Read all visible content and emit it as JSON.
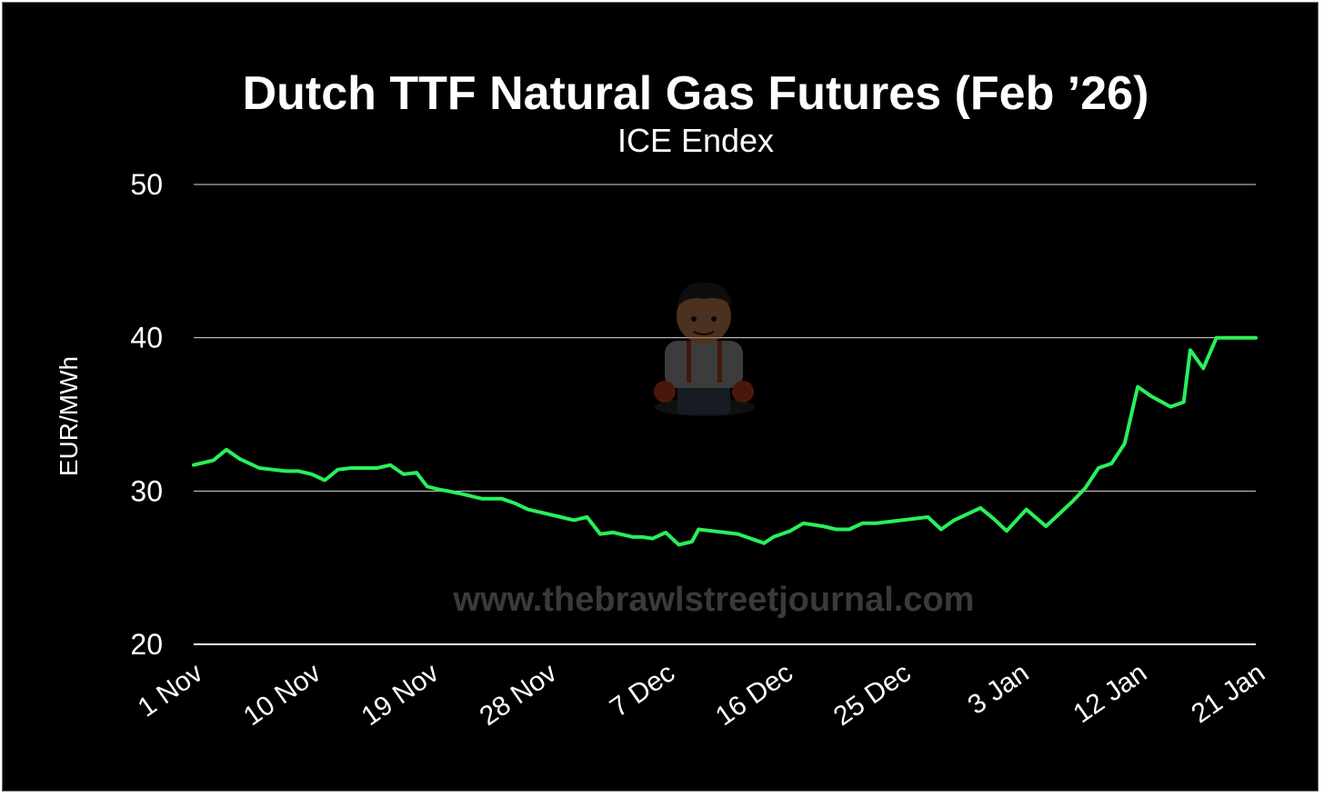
{
  "watermark_text": "www.thebrawlstreetjournal.com",
  "mascot_icon": "cartoon-brawler-mascot-icon",
  "colors": {
    "background": "#000000",
    "line": "#29f05a",
    "grid": "#ffffff",
    "text": "#ffffff",
    "watermark": "#3a3a3a"
  },
  "chart_data": {
    "type": "line",
    "title": "Dutch TTF Natural Gas Futures (Feb ’26)",
    "subtitle": "ICE Endex",
    "xlabel": "",
    "ylabel": "EUR/MWh",
    "ylim": [
      20,
      50
    ],
    "yticks": [
      "20",
      "30",
      "40",
      "50"
    ],
    "xticks": [
      {
        "label": "1 Nov",
        "x": 0
      },
      {
        "label": "10 Nov",
        "x": 9
      },
      {
        "label": "19 Nov",
        "x": 18
      },
      {
        "label": "28 Nov",
        "x": 27
      },
      {
        "label": "7 Dec",
        "x": 36
      },
      {
        "label": "16 Dec",
        "x": 45
      },
      {
        "label": "25 Dec",
        "x": 54
      },
      {
        "label": "3 Jan",
        "x": 63
      },
      {
        "label": "12 Jan",
        "x": 72
      },
      {
        "label": "21 Jan",
        "x": 81
      }
    ],
    "grid": true,
    "series": [
      {
        "x": [
          0,
          1.5,
          2.5,
          3.5,
          5,
          6,
          7,
          8,
          9,
          10,
          11,
          12,
          13,
          14,
          15,
          16,
          17,
          17.8,
          18.7,
          19.4,
          20.5,
          22,
          23.5,
          24.5,
          25.5,
          27,
          28,
          29,
          30,
          31,
          32,
          33.5,
          34.2,
          35,
          36,
          37,
          38,
          38.5,
          39.5,
          40.5,
          41.5,
          43.5,
          44.2,
          45.5,
          46.5,
          48,
          49,
          50,
          51,
          52,
          53,
          54,
          56,
          57,
          58,
          60,
          61,
          62,
          63.5,
          65,
          66,
          67,
          68,
          69,
          70,
          71,
          72,
          73,
          74.5,
          75.5,
          76,
          77,
          78,
          79,
          79.5,
          80.5,
          81
        ],
        "y": [
          31.7,
          32.0,
          32.7,
          32.1,
          31.5,
          31.4,
          31.3,
          31.3,
          31.1,
          30.7,
          31.4,
          31.5,
          31.5,
          31.5,
          31.7,
          31.1,
          31.2,
          30.3,
          30.1,
          30.0,
          29.8,
          29.5,
          29.5,
          29.2,
          28.8,
          28.5,
          28.3,
          28.1,
          28.3,
          27.2,
          27.3,
          27.0,
          27.0,
          26.9,
          27.3,
          26.5,
          26.7,
          27.5,
          27.4,
          27.3,
          27.2,
          26.6,
          27.0,
          27.4,
          27.9,
          27.7,
          27.5,
          27.5,
          27.9,
          27.9,
          28.0,
          28.1,
          28.3,
          27.5,
          28.1,
          28.9,
          28.2,
          27.4,
          28.8,
          27.7,
          28.5,
          29.3,
          30.2,
          31.5,
          31.8,
          33.1,
          36.8,
          36.2,
          35.5,
          35.8,
          39.2,
          38.0,
          40.0,
          40.0,
          40.0,
          40.0,
          40.0
        ]
      }
    ]
  }
}
